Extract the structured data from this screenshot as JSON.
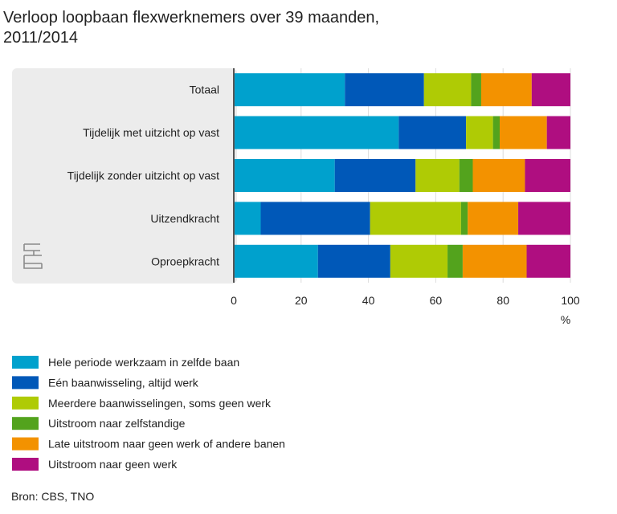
{
  "chart_data": {
    "type": "bar",
    "orientation": "horizontal",
    "stacked": true,
    "title": "Verloop loopbaan flexwerknemers over 39 maanden, 2011/2014",
    "title_lines": [
      "Verloop loopbaan flexwerknemers over 39 maanden,",
      "2011/2014"
    ],
    "categories": [
      "Totaal",
      "Tijdelijk met uitzicht op vast",
      "Tijdelijk zonder uitzicht op vast",
      "Uitzendkracht",
      "Oproepkracht"
    ],
    "xlabel": "%",
    "xlim": [
      0,
      100
    ],
    "xticks": [
      0,
      20,
      40,
      60,
      80,
      100
    ],
    "grid": true,
    "legend_position": "bottom",
    "series": [
      {
        "name": "Hele periode werkzaam in zelfde baan",
        "color": "#00a1cd",
        "values": [
          33,
          49,
          30,
          8,
          25
        ]
      },
      {
        "name": "Eén baanwisseling, altijd werk",
        "color": "#0058b8",
        "values": [
          23.5,
          20,
          24,
          32.5,
          21.5
        ]
      },
      {
        "name": "Meerdere baanwisselingen, soms geen werk",
        "color": "#afcb05",
        "values": [
          14,
          8,
          13,
          27,
          17
        ]
      },
      {
        "name": "Uitstroom naar zelfstandige",
        "color": "#53a31d",
        "values": [
          3,
          2,
          4,
          2,
          4.5
        ]
      },
      {
        "name": "Late uitstroom naar geen werk of andere banen",
        "color": "#f39200",
        "values": [
          15,
          14,
          15.5,
          15,
          19
        ]
      },
      {
        "name": "Uitstroom naar geen werk",
        "color": "#af0e80",
        "values": [
          11.5,
          7,
          13.5,
          15.5,
          13
        ]
      }
    ]
  },
  "source": "Bron: CBS, TNO",
  "logo_text": "cbs"
}
